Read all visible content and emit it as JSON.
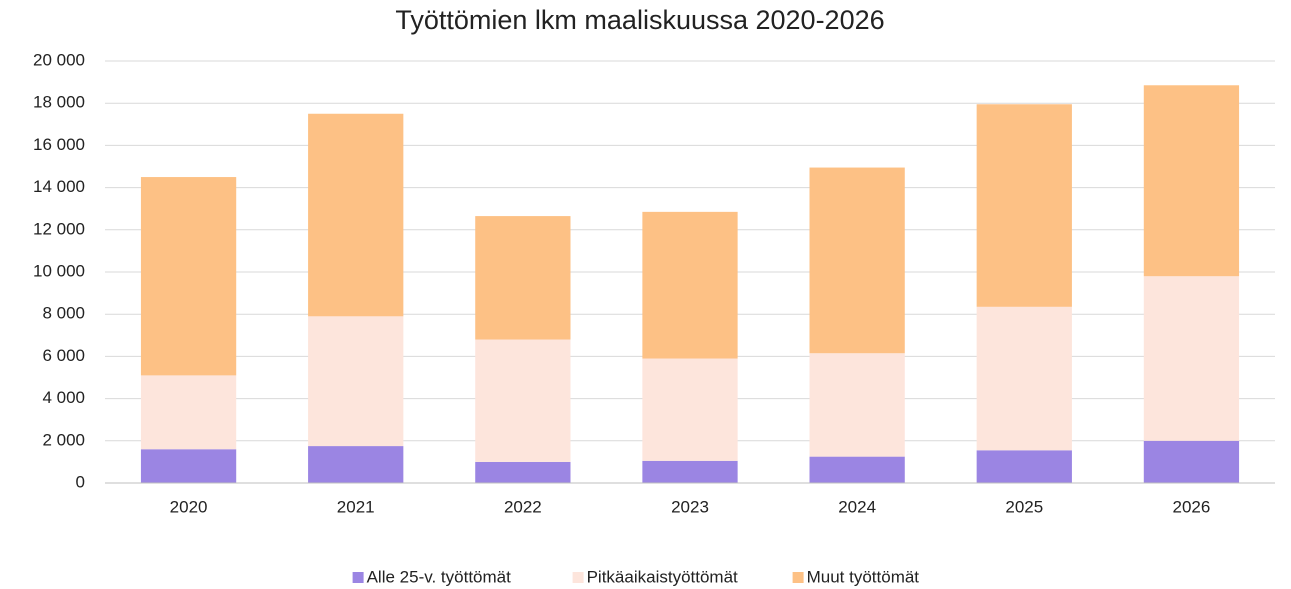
{
  "chart_data": {
    "type": "stacked_bar",
    "title": "Työttömien lkm maaliskuussa 2020-2026",
    "categories": [
      "2020",
      "2021",
      "2022",
      "2023",
      "2024",
      "2025",
      "2026"
    ],
    "series": [
      {
        "name": "Alle 25-v. työttömät",
        "color": "#9b85e3",
        "values": [
          1600,
          1750,
          1000,
          1050,
          1250,
          1550,
          2000
        ]
      },
      {
        "name": "Pitkäaikaistyöttömät",
        "color": "#fde5dc",
        "values": [
          3500,
          6150,
          5800,
          4850,
          4900,
          6800,
          7800
        ]
      },
      {
        "name": "Muut työttömät",
        "color": "#fdc185",
        "values": [
          9400,
          9600,
          5850,
          6950,
          8800,
          9600,
          9050
        ]
      }
    ],
    "ylim": [
      0,
      20000
    ],
    "yticks": [
      0,
      {
        "value": 2000,
        "label": "2 000"
      },
      {
        "value": 4000,
        "label": "4 000"
      },
      {
        "value": 6000,
        "label": "6 000"
      },
      {
        "value": 8000,
        "label": "8 000"
      },
      {
        "value": 10000,
        "label": "10 000"
      },
      {
        "value": 12000,
        "label": "12 000"
      },
      {
        "value": 14000,
        "label": "14 000"
      },
      {
        "value": 16000,
        "label": "16 000"
      },
      {
        "value": 18000,
        "label": "18 000"
      },
      {
        "value": 20000,
        "label": "20 000"
      }
    ],
    "grid": true,
    "legend": "bottom"
  }
}
